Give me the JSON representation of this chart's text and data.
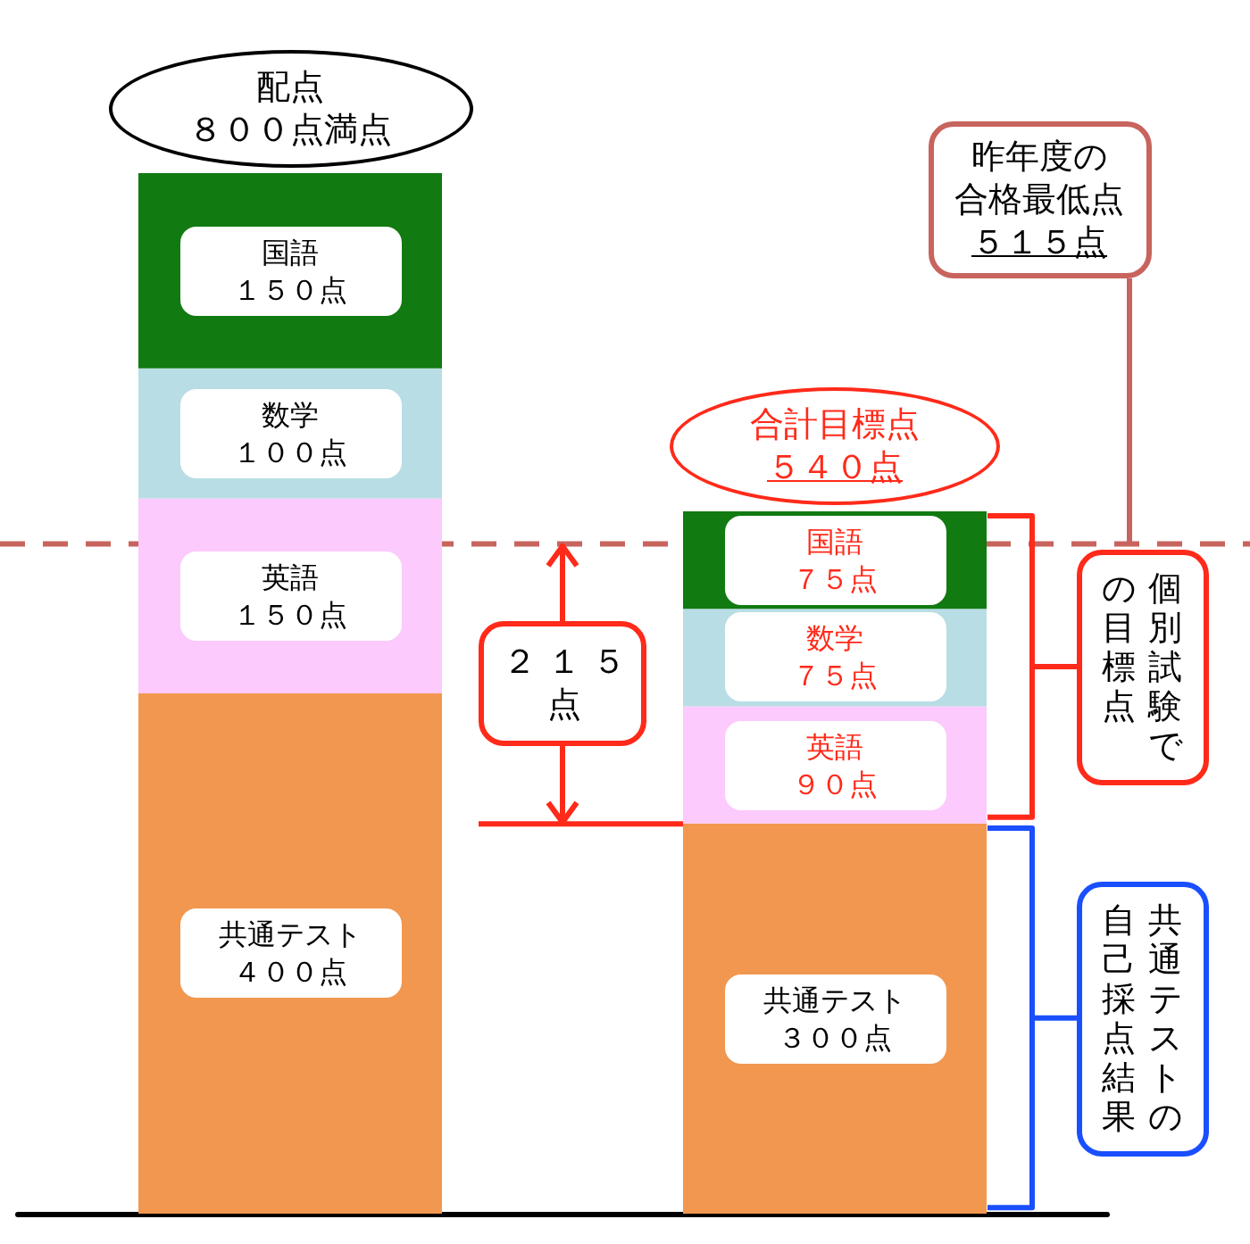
{
  "chart_data": {
    "type": "bar",
    "stacked": true,
    "categories": [
      null,
      null
    ],
    "series": [
      {
        "name": "共通テスト",
        "color": "#f2974f",
        "values": [
          400,
          300
        ],
        "value_labels": [
          "４００点",
          "３００点"
        ]
      },
      {
        "name": "英語",
        "color": "#fccafc",
        "values": [
          150,
          90
        ],
        "value_labels": [
          "１５０点",
          "９０点"
        ]
      },
      {
        "name": "数学",
        "color": "#b9dde5",
        "values": [
          100,
          75
        ],
        "value_labels": [
          "１００点",
          "７５点"
        ]
      },
      {
        "name": "国語",
        "color": "#117a11",
        "values": [
          150,
          75
        ],
        "value_labels": [
          "１５０点",
          "７５点"
        ]
      }
    ],
    "totals": [
      "配点８００点満点",
      "合計目標点５４０点"
    ],
    "ref_lines": [
      {
        "axis": "y",
        "value": 515,
        "label": "昨年度の合格最低点５１５点",
        "color": "#c8645e",
        "line_style": "dashed"
      }
    ],
    "annotations": [
      "２１５点",
      "個別試験での目標点",
      "共通テストの自己採点結果"
    ],
    "tick_labels": false
  }
}
